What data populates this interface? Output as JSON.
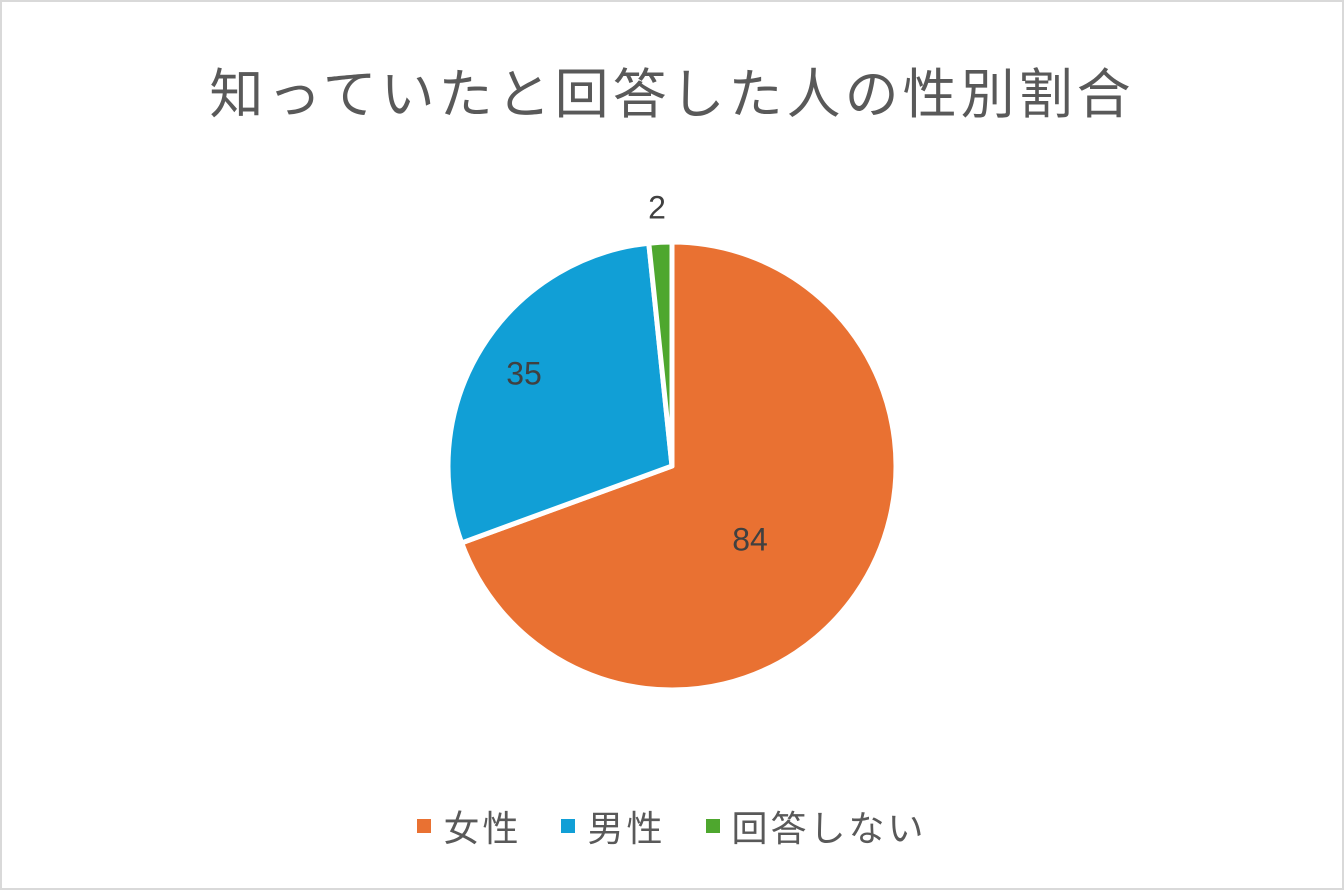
{
  "chart_data": {
    "type": "pie",
    "title": "知っていたと回答した人の性別割合",
    "categories": [
      "女性",
      "男性",
      "回答しない"
    ],
    "values": [
      84,
      35,
      2
    ],
    "colors": [
      "#E97132",
      "#119FD6",
      "#4EA72E"
    ],
    "data_labels": [
      "84",
      "35",
      "2"
    ],
    "start_angle": "12 o'clock, clockwise",
    "legend_position": "bottom"
  },
  "legend": {
    "items": [
      {
        "label": "女性",
        "color": "#E97132"
      },
      {
        "label": "男性",
        "color": "#119FD6"
      },
      {
        "label": "回答しない",
        "color": "#4EA72E"
      }
    ]
  }
}
